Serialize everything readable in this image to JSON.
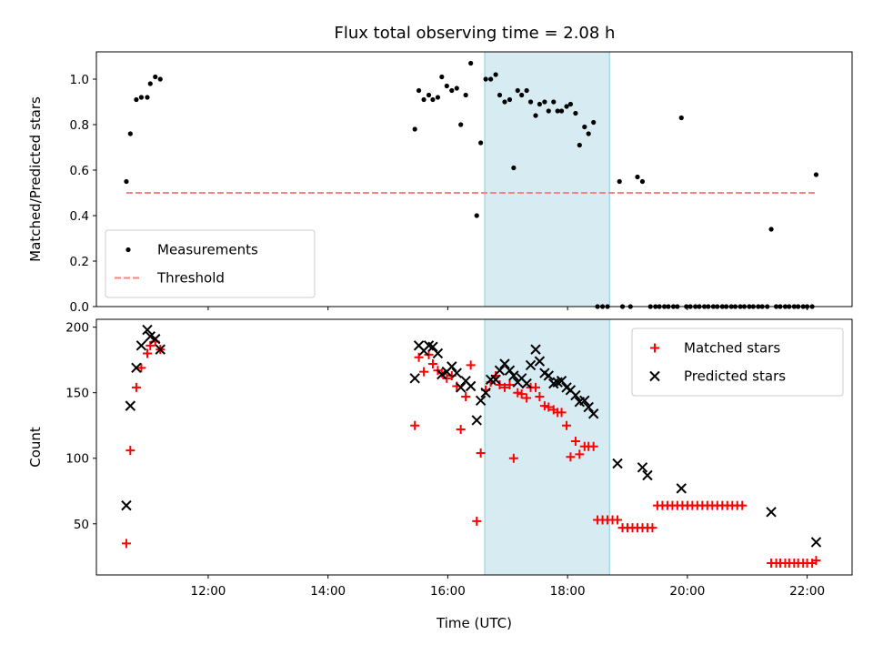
{
  "title": "Flux total observing time = 2.08 h",
  "chart_data": [
    {
      "type": "scatter",
      "ylabel": "Matched/Predicted stars",
      "xlim": [
        "10:08",
        "22:45"
      ],
      "ylim": [
        0,
        1.12
      ],
      "yticks": [
        0.0,
        0.2,
        0.4,
        0.6,
        0.8,
        1.0
      ],
      "ytick_labels": [
        "0.0",
        "0.2",
        "0.4",
        "0.6",
        "0.8",
        "1.0"
      ],
      "legend_position": "lower-left",
      "highlight_span": [
        "16:37",
        "18:42"
      ],
      "series": [
        {
          "name": "Measurements",
          "marker": "dot",
          "color": "#000000",
          "points": [
            [
              "10:38",
              0.55
            ],
            [
              "10:42",
              0.76
            ],
            [
              "10:48",
              0.91
            ],
            [
              "10:53",
              0.92
            ],
            [
              "10:59",
              0.92
            ],
            [
              "11:02",
              0.98
            ],
            [
              "11:07",
              1.01
            ],
            [
              "11:12",
              1.0
            ],
            [
              "15:27",
              0.78
            ],
            [
              "15:31",
              0.95
            ],
            [
              "15:36",
              0.91
            ],
            [
              "15:41",
              0.93
            ],
            [
              "15:45",
              0.91
            ],
            [
              "15:50",
              0.92
            ],
            [
              "15:54",
              1.01
            ],
            [
              "15:59",
              0.97
            ],
            [
              "16:04",
              0.95
            ],
            [
              "16:09",
              0.96
            ],
            [
              "16:13",
              0.8
            ],
            [
              "16:18",
              0.93
            ],
            [
              "16:23",
              1.07
            ],
            [
              "16:29",
              0.4
            ],
            [
              "16:33",
              0.72
            ],
            [
              "16:38",
              1.0
            ],
            [
              "16:43",
              1.0
            ],
            [
              "16:48",
              1.02
            ],
            [
              "16:52",
              0.93
            ],
            [
              "16:57",
              0.9
            ],
            [
              "17:02",
              0.91
            ],
            [
              "17:06",
              0.61
            ],
            [
              "17:10",
              0.95
            ],
            [
              "17:14",
              0.93
            ],
            [
              "17:19",
              0.95
            ],
            [
              "17:23",
              0.9
            ],
            [
              "17:28",
              0.84
            ],
            [
              "17:32",
              0.89
            ],
            [
              "17:37",
              0.9
            ],
            [
              "17:41",
              0.86
            ],
            [
              "17:46",
              0.9
            ],
            [
              "17:50",
              0.86
            ],
            [
              "17:54",
              0.86
            ],
            [
              "17:59",
              0.88
            ],
            [
              "18:03",
              0.89
            ],
            [
              "18:08",
              0.85
            ],
            [
              "18:12",
              0.71
            ],
            [
              "18:17",
              0.79
            ],
            [
              "18:21",
              0.76
            ],
            [
              "18:26",
              0.81
            ],
            [
              "18:30",
              0.0
            ],
            [
              "18:35",
              0.0
            ],
            [
              "18:40",
              0.0
            ],
            [
              "18:52",
              0.55
            ],
            [
              "18:55",
              0.0
            ],
            [
              "19:03",
              0.0
            ],
            [
              "19:10",
              0.57
            ],
            [
              "19:15",
              0.55
            ],
            [
              "19:23",
              0.0
            ],
            [
              "19:28",
              0.0
            ],
            [
              "19:32",
              0.0
            ],
            [
              "19:37",
              0.0
            ],
            [
              "19:41",
              0.0
            ],
            [
              "19:46",
              0.0
            ],
            [
              "19:50",
              0.0
            ],
            [
              "19:54",
              0.83
            ],
            [
              "19:59",
              0.0
            ],
            [
              "20:03",
              0.0
            ],
            [
              "20:08",
              0.0
            ],
            [
              "20:12",
              0.0
            ],
            [
              "20:17",
              0.0
            ],
            [
              "20:21",
              0.0
            ],
            [
              "20:26",
              0.0
            ],
            [
              "20:30",
              0.0
            ],
            [
              "20:35",
              0.0
            ],
            [
              "20:39",
              0.0
            ],
            [
              "20:44",
              0.0
            ],
            [
              "20:48",
              0.0
            ],
            [
              "20:53",
              0.0
            ],
            [
              "20:57",
              0.0
            ],
            [
              "21:02",
              0.0
            ],
            [
              "21:06",
              0.0
            ],
            [
              "21:11",
              0.0
            ],
            [
              "21:15",
              0.0
            ],
            [
              "21:20",
              0.0
            ],
            [
              "21:24",
              0.34
            ],
            [
              "21:29",
              0.0
            ],
            [
              "21:33",
              0.0
            ],
            [
              "21:38",
              0.0
            ],
            [
              "21:42",
              0.0
            ],
            [
              "21:47",
              0.0
            ],
            [
              "21:51",
              0.0
            ],
            [
              "21:56",
              0.0
            ],
            [
              "22:00",
              0.0
            ],
            [
              "22:05",
              0.0
            ],
            [
              "22:09",
              0.58
            ]
          ]
        },
        {
          "name": "Threshold",
          "marker": "dashed-line",
          "color": "#ff8080",
          "points": [
            [
              "10:38",
              0.5
            ],
            [
              "22:09",
              0.5
            ]
          ]
        }
      ]
    },
    {
      "type": "scatter",
      "xlabel": "Time (UTC)",
      "ylabel": "Count",
      "xlim": [
        "10:08",
        "22:45"
      ],
      "ylim": [
        11,
        206
      ],
      "xticks": [
        "12:00",
        "14:00",
        "16:00",
        "18:00",
        "20:00",
        "22:00"
      ],
      "yticks": [
        50,
        100,
        150,
        200
      ],
      "ytick_labels": [
        "50",
        "100",
        "150",
        "200"
      ],
      "legend_position": "upper-right",
      "highlight_span": [
        "16:37",
        "18:42"
      ],
      "series": [
        {
          "name": "Matched stars",
          "marker": "plus",
          "color": "#ff0000",
          "points": [
            [
              "10:38",
              35
            ],
            [
              "10:42",
              106
            ],
            [
              "10:48",
              154
            ],
            [
              "10:53",
              169
            ],
            [
              "10:59",
              180
            ],
            [
              "11:02",
              186
            ],
            [
              "11:07",
              189
            ],
            [
              "11:12",
              183
            ],
            [
              "15:27",
              125
            ],
            [
              "15:31",
              177
            ],
            [
              "15:36",
              166
            ],
            [
              "15:41",
              179
            ],
            [
              "15:45",
              172
            ],
            [
              "15:50",
              167
            ],
            [
              "15:54",
              165
            ],
            [
              "15:59",
              161
            ],
            [
              "16:04",
              163
            ],
            [
              "16:09",
              155
            ],
            [
              "16:13",
              122
            ],
            [
              "16:18",
              147
            ],
            [
              "16:23",
              171
            ],
            [
              "16:29",
              52
            ],
            [
              "16:33",
              104
            ],
            [
              "16:38",
              152
            ],
            [
              "16:43",
              158
            ],
            [
              "16:48",
              163
            ],
            [
              "16:52",
              156
            ],
            [
              "16:57",
              154
            ],
            [
              "17:02",
              156
            ],
            [
              "17:06",
              100
            ],
            [
              "17:10",
              150
            ],
            [
              "17:14",
              149
            ],
            [
              "17:19",
              146
            ],
            [
              "17:23",
              154
            ],
            [
              "17:28",
              154
            ],
            [
              "17:32",
              147
            ],
            [
              "17:37",
              140
            ],
            [
              "17:41",
              139
            ],
            [
              "17:46",
              137
            ],
            [
              "17:50",
              135
            ],
            [
              "17:54",
              135
            ],
            [
              "17:59",
              125
            ],
            [
              "18:03",
              101
            ],
            [
              "18:08",
              113
            ],
            [
              "18:12",
              103
            ],
            [
              "18:17",
              109
            ],
            [
              "18:21",
              109
            ],
            [
              "18:26",
              109
            ],
            [
              "18:30",
              53
            ],
            [
              "18:35",
              53
            ],
            [
              "18:40",
              53
            ],
            [
              "18:45",
              53
            ],
            [
              "18:50",
              53
            ],
            [
              "18:55",
              47
            ],
            [
              "19:00",
              47
            ],
            [
              "19:05",
              47
            ],
            [
              "19:10",
              47
            ],
            [
              "19:15",
              47
            ],
            [
              "19:20",
              47
            ],
            [
              "19:25",
              47
            ],
            [
              "19:30",
              64
            ],
            [
              "19:35",
              64
            ],
            [
              "19:40",
              64
            ],
            [
              "19:45",
              64
            ],
            [
              "19:50",
              64
            ],
            [
              "19:55",
              64
            ],
            [
              "20:00",
              64
            ],
            [
              "20:05",
              64
            ],
            [
              "20:10",
              64
            ],
            [
              "20:15",
              64
            ],
            [
              "20:20",
              64
            ],
            [
              "20:25",
              64
            ],
            [
              "20:30",
              64
            ],
            [
              "20:35",
              64
            ],
            [
              "20:40",
              64
            ],
            [
              "20:45",
              64
            ],
            [
              "20:50",
              64
            ],
            [
              "20:55",
              64
            ],
            [
              "21:24",
              20
            ],
            [
              "21:29",
              20
            ],
            [
              "21:33",
              20
            ],
            [
              "21:38",
              20
            ],
            [
              "21:42",
              20
            ],
            [
              "21:47",
              20
            ],
            [
              "21:51",
              20
            ],
            [
              "21:56",
              20
            ],
            [
              "22:00",
              20
            ],
            [
              "22:05",
              20
            ],
            [
              "22:09",
              22
            ]
          ]
        },
        {
          "name": "Predicted stars",
          "marker": "x",
          "color": "#000000",
          "points": [
            [
              "10:38",
              64
            ],
            [
              "10:42",
              140
            ],
            [
              "10:48",
              169
            ],
            [
              "10:53",
              186
            ],
            [
              "10:59",
              198
            ],
            [
              "11:02",
              193
            ],
            [
              "11:07",
              191
            ],
            [
              "11:12",
              183
            ],
            [
              "15:27",
              161
            ],
            [
              "15:31",
              186
            ],
            [
              "15:36",
              182
            ],
            [
              "15:41",
              186
            ],
            [
              "15:45",
              185
            ],
            [
              "15:50",
              180
            ],
            [
              "15:54",
              164
            ],
            [
              "15:59",
              166
            ],
            [
              "16:04",
              170
            ],
            [
              "16:09",
              165
            ],
            [
              "16:13",
              154
            ],
            [
              "16:18",
              159
            ],
            [
              "16:23",
              155
            ],
            [
              "16:29",
              129
            ],
            [
              "16:33",
              144
            ],
            [
              "16:38",
              150
            ],
            [
              "16:43",
              160
            ],
            [
              "16:48",
              160
            ],
            [
              "16:52",
              167
            ],
            [
              "16:57",
              172
            ],
            [
              "17:02",
              167
            ],
            [
              "17:06",
              163
            ],
            [
              "17:10",
              158
            ],
            [
              "17:14",
              161
            ],
            [
              "17:19",
              157
            ],
            [
              "17:23",
              171
            ],
            [
              "17:28",
              183
            ],
            [
              "17:32",
              174
            ],
            [
              "17:37",
              165
            ],
            [
              "17:41",
              163
            ],
            [
              "17:46",
              157
            ],
            [
              "17:50",
              158
            ],
            [
              "17:54",
              159
            ],
            [
              "17:59",
              154
            ],
            [
              "18:03",
              152
            ],
            [
              "18:08",
              148
            ],
            [
              "18:12",
              143
            ],
            [
              "18:17",
              144
            ],
            [
              "18:21",
              139
            ],
            [
              "18:26",
              134
            ],
            [
              "18:50",
              96
            ],
            [
              "19:15",
              93
            ],
            [
              "19:20",
              87
            ],
            [
              "19:54",
              77
            ],
            [
              "21:24",
              59
            ],
            [
              "22:09",
              36
            ]
          ]
        }
      ]
    }
  ]
}
